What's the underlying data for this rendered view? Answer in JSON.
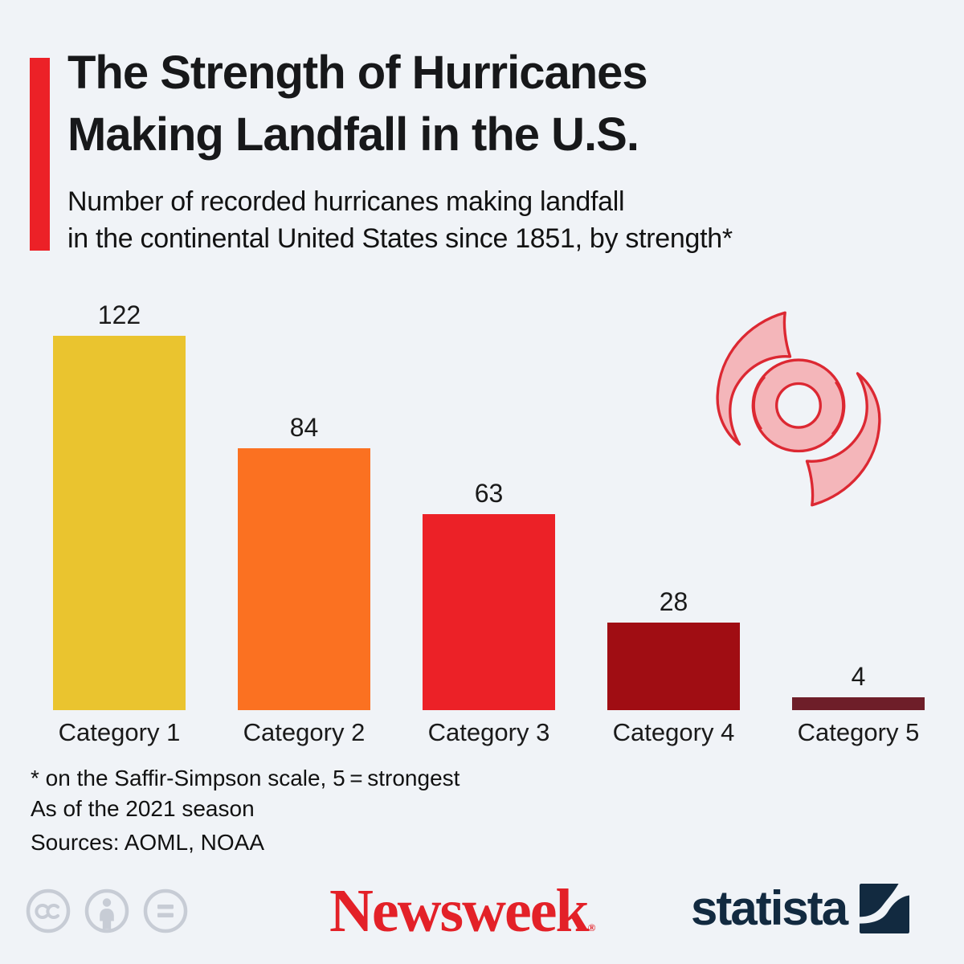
{
  "header": {
    "title": "The Strength of Hurricanes\nMaking Landfall in the U.S.",
    "subtitle": "Number of recorded hurricanes making landfall\nin the continental United States since 1851, by strength*",
    "accent_color": "#EC2127",
    "background_color": "#F0F3F7"
  },
  "chart_data": {
    "type": "bar",
    "categories": [
      "Category 1",
      "Category 2",
      "Category 3",
      "Category 4",
      "Category 5"
    ],
    "values": [
      122,
      84,
      63,
      28,
      4
    ],
    "bar_colors": [
      "#EAC42F",
      "#FB7121",
      "#EC2127",
      "#A00D13",
      "#6E1E29"
    ],
    "title": "The Strength of Hurricanes Making Landfall in the U.S.",
    "xlabel": "",
    "ylabel": "",
    "ylim": [
      0,
      130
    ],
    "grid": false,
    "legend": false,
    "value_labels_shown": true
  },
  "footnotes": {
    "scale_note": "* on the Saffir-Simpson scale, 5 = strongest",
    "season_note": "As of the 2021 season",
    "sources": "Sources: AOML, NOAA"
  },
  "footer": {
    "newsweek_logo": "Newsweek",
    "newsweek_reg_mark": "®",
    "newsweek_color": "#E32128",
    "statista_logo": "statista",
    "statista_color": "#122A40",
    "license_icon_color": "#C7CCD5"
  },
  "icons": {
    "hurricane": "hurricane-cyclone-swirl",
    "hurricane_fill": "#F4B6BA",
    "hurricane_stroke": "#DC2832",
    "cc": "creative-commons",
    "attribution": "person",
    "equals": "equality"
  }
}
